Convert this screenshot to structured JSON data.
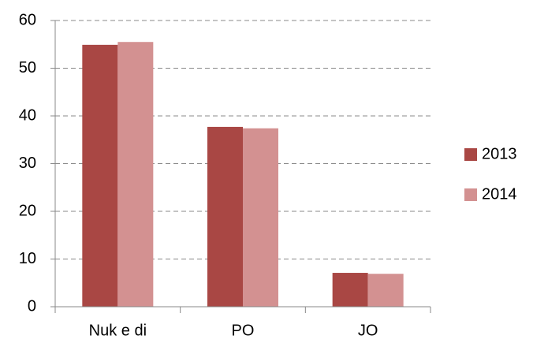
{
  "chart_data": {
    "type": "bar",
    "categories": [
      "Nuk e di",
      "PO",
      "JO"
    ],
    "series": [
      {
        "name": "2013",
        "color": "#a94744",
        "values": [
          54.9,
          37.7,
          7.1
        ]
      },
      {
        "name": "2014",
        "color": "#d39191",
        "values": [
          55.5,
          37.4,
          6.9
        ]
      }
    ],
    "ylim": [
      0,
      60
    ],
    "yticks": [
      0,
      10,
      20,
      30,
      40,
      50,
      60
    ],
    "grid": true,
    "legend": "right"
  }
}
